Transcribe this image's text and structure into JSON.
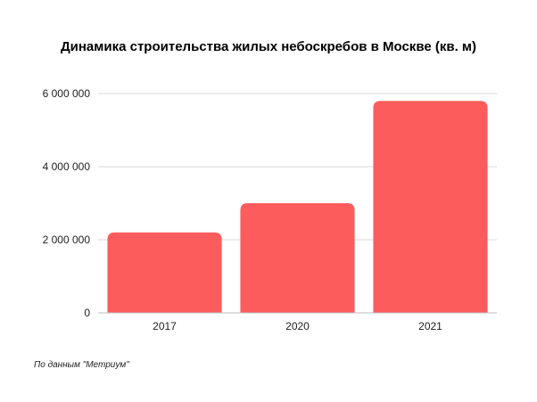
{
  "chart_data": {
    "type": "bar",
    "title": "Динамика строительства жилых небоскребов в Москве (кв. м)",
    "categories": [
      "2017",
      "2020",
      "2021"
    ],
    "values": [
      2200000,
      3000000,
      5800000
    ],
    "ylim": [
      0,
      6000000
    ],
    "yticks": [
      0,
      2000000,
      4000000,
      6000000
    ],
    "ytick_labels": [
      "0",
      "2 000 000",
      "4 000 000",
      "6 000 000"
    ],
    "xlabel": "",
    "ylabel": "",
    "grid": true,
    "bar_color": "#fd5c5c",
    "grid_color": "#d9d9d9"
  },
  "source": "По данным \"Метриум\""
}
